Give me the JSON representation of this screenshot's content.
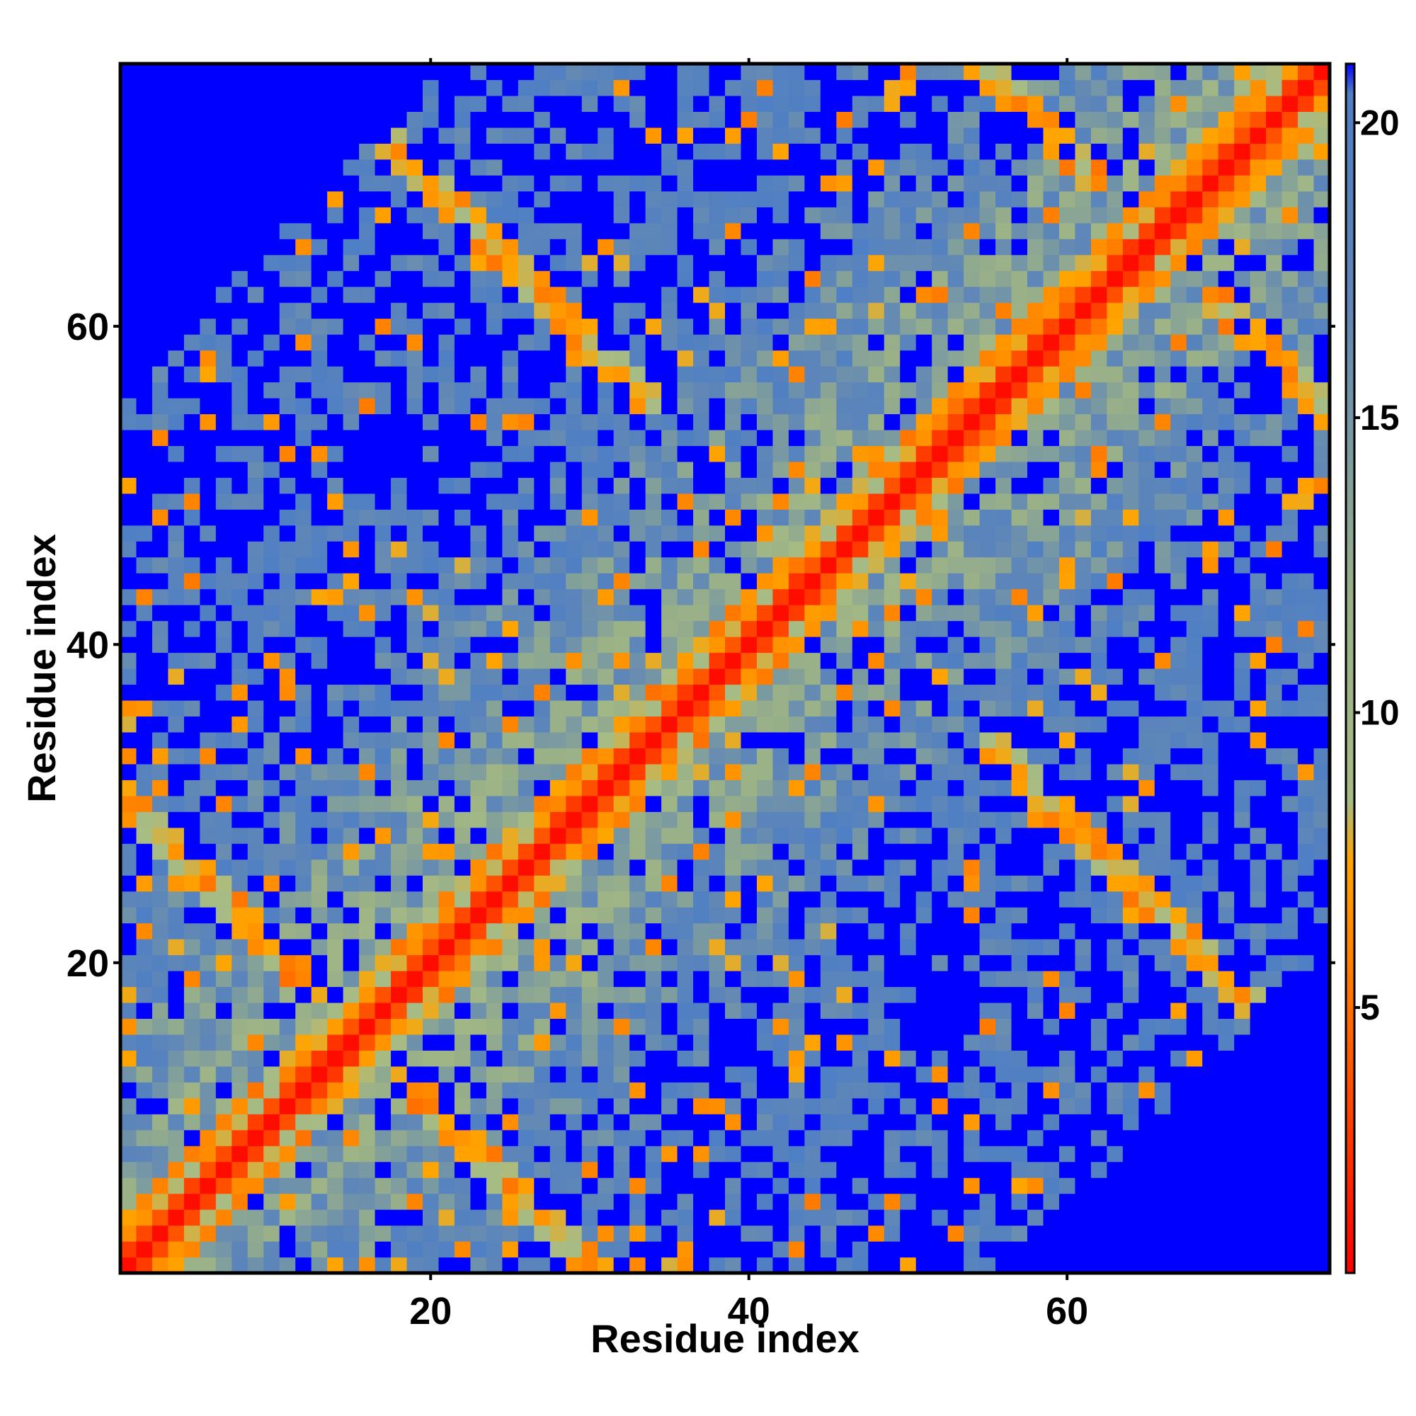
{
  "chart_data": {
    "type": "heatmap",
    "title": "",
    "xlabel": "Residue index",
    "ylabel": "Residue index",
    "n_residues": 76,
    "x_ticks": [
      20,
      40,
      60
    ],
    "y_ticks": [
      20,
      40,
      60
    ],
    "x_tick_labels": [
      "20",
      "40",
      "60"
    ],
    "y_tick_labels": [
      "20",
      "40",
      "60"
    ],
    "xlim": [
      0.5,
      76.5
    ],
    "ylim": [
      0.5,
      76.5
    ],
    "colorbar": {
      "ticks": [
        5,
        10,
        15,
        20
      ],
      "tick_labels": [
        "5",
        "10",
        "15",
        "20"
      ],
      "range": [
        0.5,
        21
      ],
      "stops": [
        {
          "value": 0.5,
          "color": "#ff0000"
        },
        {
          "value": 5,
          "color": "#ff7000"
        },
        {
          "value": 7.5,
          "color": "#ffa500"
        },
        {
          "value": 8.5,
          "color": "#a8bc84"
        },
        {
          "value": 12,
          "color": "#99b088"
        },
        {
          "value": 17,
          "color": "#5e86b8"
        },
        {
          "value": 20.5,
          "color": "#4f7fc4"
        },
        {
          "value": 21,
          "color": "#0000ff"
        }
      ]
    },
    "value_meaning": "pairwise residue distance (diagonal ~0, saturated at 21)",
    "diagonal_width": 1.5,
    "cap_value": 21,
    "grid": false
  }
}
